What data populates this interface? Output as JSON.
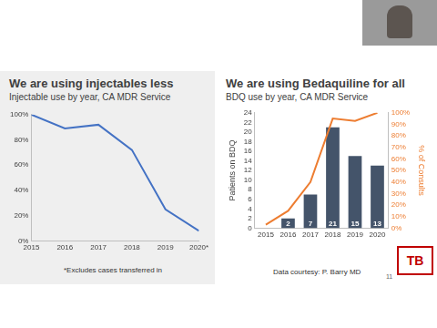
{
  "chart_data": [
    {
      "type": "line",
      "title": "We are using injectables less",
      "subtitle": "Injectable use by year, CA MDR Service",
      "annotations": [
        "*Excludes cases transferred in"
      ],
      "categories": [
        "2015",
        "2016",
        "2017",
        "2018",
        "2019",
        "2020*"
      ],
      "values": [
        100,
        89,
        92,
        72,
        25,
        8
      ],
      "color": "#4472c4",
      "ylim": [
        0,
        100
      ],
      "yticks": [
        {
          "value": 0,
          "label": "0%"
        },
        {
          "value": 20,
          "label": "20%"
        },
        {
          "value": 40,
          "label": "40%"
        },
        {
          "value": 60,
          "label": "60%"
        },
        {
          "value": 80,
          "label": "80%"
        },
        {
          "value": 100,
          "label": "100%"
        }
      ],
      "grid": false
    },
    {
      "type": "bar",
      "title": "We are using Bedaquiline for all",
      "subtitle": "BDQ use by year, CA MDR Service",
      "annotations": [
        "Data courtesy: P. Barry MD"
      ],
      "categories": [
        "2015",
        "2016",
        "2017",
        "2018",
        "2019",
        "2020"
      ],
      "y_label": "Patients on BDQ",
      "y2_label": "% of Consults",
      "ylim": [
        0,
        24
      ],
      "yticks": [
        0,
        2,
        4,
        6,
        8,
        10,
        12,
        14,
        16,
        18,
        20,
        22,
        24
      ],
      "y2lim": [
        0,
        100
      ],
      "y2ticks": [
        {
          "value": 0,
          "label": "0%"
        },
        {
          "value": 10,
          "label": "10%"
        },
        {
          "value": 20,
          "label": "20%"
        },
        {
          "value": 30,
          "label": "30%"
        },
        {
          "value": 40,
          "label": "40%"
        },
        {
          "value": 50,
          "label": "50%"
        },
        {
          "value": 60,
          "label": "60%"
        },
        {
          "value": 70,
          "label": "70%"
        },
        {
          "value": 80,
          "label": "80%"
        },
        {
          "value": 90,
          "label": "90%"
        },
        {
          "value": 100,
          "label": "100%"
        }
      ],
      "grid": false,
      "series": [
        {
          "type": "bar",
          "color": "#44546a",
          "values": [
            null,
            2,
            7,
            21,
            15,
            13
          ],
          "data_labels": true
        },
        {
          "type": "line",
          "color": "#ed7d31",
          "values": [
            3,
            15,
            40,
            95,
            93,
            100
          ],
          "axis": "y2"
        }
      ]
    }
  ],
  "logo": "TB",
  "page": "11"
}
